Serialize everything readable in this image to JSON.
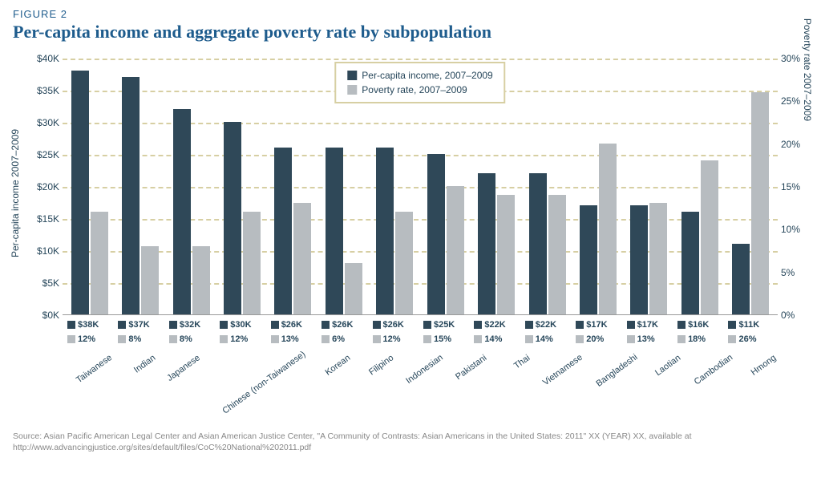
{
  "figure_label": "FIGURE 2",
  "title": "Per-capita income and aggregate poverty rate by subpopulation",
  "chart": {
    "type": "bar",
    "left_axis": {
      "label": "Per-capita income 2007–2009",
      "min": 0,
      "max": 40000,
      "step": 5000,
      "ticks": [
        "$0K",
        "$5K",
        "$10K",
        "$15K",
        "$20K",
        "$25K",
        "$30K",
        "$35K",
        "$40K"
      ]
    },
    "right_axis": {
      "label": "Poverty rate 2007–2009",
      "min": 0,
      "max": 30,
      "step": 5,
      "ticks": [
        "0%",
        "5%",
        "10%",
        "15%",
        "20%",
        "25%",
        "30%"
      ]
    },
    "series": [
      {
        "key": "income",
        "label": "Per-capita income, 2007–2009",
        "color": "#2f4858",
        "axis": "left"
      },
      {
        "key": "poverty",
        "label": "Poverty rate, 2007–2009",
        "color": "#b7bcc0",
        "axis": "right"
      }
    ],
    "categories": [
      {
        "name": "Taiwanese",
        "income": 38000,
        "poverty": 12,
        "income_label": "$38K",
        "poverty_label": "12%"
      },
      {
        "name": "Indian",
        "income": 37000,
        "poverty": 8,
        "income_label": "$37K",
        "poverty_label": "8%"
      },
      {
        "name": "Japanese",
        "income": 32000,
        "poverty": 8,
        "income_label": "$32K",
        "poverty_label": "8%"
      },
      {
        "name": "Chinese (non-Taiwanese)",
        "income": 30000,
        "poverty": 12,
        "income_label": "$30K",
        "poverty_label": "12%"
      },
      {
        "name": "Korean",
        "income": 26000,
        "poverty": 13,
        "income_label": "$26K",
        "poverty_label": "13%"
      },
      {
        "name": "Filipino",
        "income": 26000,
        "poverty": 6,
        "income_label": "$26K",
        "poverty_label": "6%"
      },
      {
        "name": "Indonesian",
        "income": 26000,
        "poverty": 12,
        "income_label": "$26K",
        "poverty_label": "12%"
      },
      {
        "name": "Pakistani",
        "income": 25000,
        "poverty": 15,
        "income_label": "$25K",
        "poverty_label": "15%"
      },
      {
        "name": "Thai",
        "income": 22000,
        "poverty": 14,
        "income_label": "$22K",
        "poverty_label": "14%"
      },
      {
        "name": "Vietnamese",
        "income": 22000,
        "poverty": 14,
        "income_label": "$22K",
        "poverty_label": "14%"
      },
      {
        "name": "Bangladeshi",
        "income": 17000,
        "poverty": 20,
        "income_label": "$17K",
        "poverty_label": "20%"
      },
      {
        "name": "Laotian",
        "income": 17000,
        "poverty": 13,
        "income_label": "$17K",
        "poverty_label": "13%"
      },
      {
        "name": "Cambodian",
        "income": 16000,
        "poverty": 18,
        "income_label": "$16K",
        "poverty_label": "18%"
      },
      {
        "name": "Hmong",
        "income": 11000,
        "poverty": 26,
        "income_label": "$11K",
        "poverty_label": "26%"
      }
    ],
    "grid_color": "#d7cfa3",
    "background_color": "#ffffff",
    "legend_position": "top-center"
  },
  "source": "Source: Asian Pacific American Legal Center and Asian American Justice Center, \"A Community of Contrasts: Asian Americans in the United States: 2011\" XX (YEAR) XX, available at http://www.advancingjustice.org/sites/default/files/CoC%20National%202011.pdf"
}
